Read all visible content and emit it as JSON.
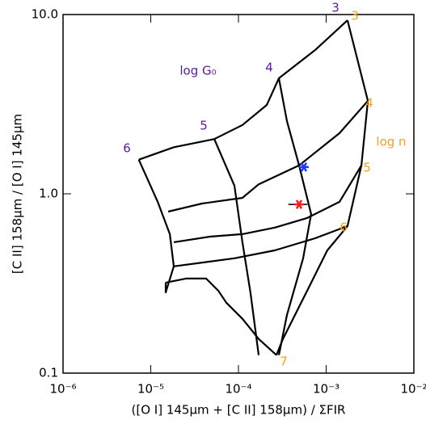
{
  "chart_data": {
    "type": "line",
    "xlabel": "([O I] 145μm + [C II] 158μm) / ΣFIR",
    "ylabel": "[C II] 158μm / [O I] 145μm",
    "log_x": true,
    "log_y": true,
    "xlim": [
      1e-06,
      0.01
    ],
    "ylim": [
      0.1,
      10
    ],
    "xticks": [
      {
        "value": 1e-06,
        "label": "10⁻⁶"
      },
      {
        "value": 1e-05,
        "label": "10⁻⁵"
      },
      {
        "value": 0.0001,
        "label": "10⁻⁴"
      },
      {
        "value": 0.001,
        "label": "10⁻³"
      },
      {
        "value": 0.01,
        "label": "10⁻²"
      }
    ],
    "yticks": [
      {
        "value": 0.1,
        "label": "0.1"
      },
      {
        "value": 1,
        "label": "1.0"
      },
      {
        "value": 10,
        "label": "10.0"
      }
    ],
    "series": [
      {
        "color": "#000000",
        "x": [
          7.3e-06,
          1.83e-05,
          5.3e-05,
          0.000111,
          0.00021,
          0.000289,
          0.00075,
          0.00175
        ],
        "values": [
          1.55,
          1.82,
          2.02,
          2.42,
          3.13,
          4.41,
          6.34,
          9.29
        ]
      },
      {
        "color": "#000000",
        "x": [
          1.58e-05,
          3.85e-05,
          0.000111,
          0.00017,
          0.000491,
          0.00142,
          0.00299
        ],
        "values": [
          0.796,
          0.883,
          0.949,
          1.13,
          1.44,
          2.18,
          3.3
        ]
      },
      {
        "color": "#000000",
        "x": [
          1.83e-05,
          4.75e-05,
          0.000111,
          0.00026,
          0.000607,
          0.00142,
          0.00252
        ],
        "values": [
          0.537,
          0.577,
          0.596,
          0.648,
          0.733,
          0.902,
          1.44
        ]
      },
      {
        "color": "#000000",
        "x": [
          1.83e-05,
          9e-05,
          0.00026,
          0.00075,
          0.00175
        ],
        "values": [
          0.394,
          0.437,
          0.484,
          0.565,
          0.661
        ]
      },
      {
        "color": "#000000",
        "x": [
          1.48e-05,
          2.52e-05,
          4.28e-05,
          5.89e-05,
          7.28e-05,
          0.000111,
          0.00017,
          0.000271
        ],
        "values": [
          0.32,
          0.337,
          0.337,
          0.288,
          0.247,
          0.201,
          0.155,
          0.126
        ]
      },
      {
        "color": "#000000",
        "x": [
          0.00175,
          0.00299,
          0.00252,
          0.00175,
          0.00103,
          0.000607,
          0.000321,
          0.000271
        ],
        "values": [
          9.29,
          3.3,
          1.44,
          0.661,
          0.484,
          0.288,
          0.155,
          0.126
        ]
      },
      {
        "color": "#000000",
        "x": [
          0.000289,
          0.000357,
          0.000491,
          0.000674,
          0.000546,
          0.000357,
          0.000289
        ],
        "values": [
          4.41,
          2.54,
          1.44,
          0.771,
          0.437,
          0.211,
          0.126
        ]
      },
      {
        "color": "#000000",
        "x": [
          5.3e-05,
          9e-05,
          0.000111,
          0.000137,
          0.00017
        ],
        "values": [
          2.02,
          1.11,
          0.537,
          0.282,
          0.126
        ]
      },
      {
        "color": "#000000",
        "x": [
          7.3e-06,
          1.2e-05,
          1.65e-05,
          1.83e-05,
          1.48e-05,
          1.48e-05
        ],
        "values": [
          1.55,
          0.902,
          0.596,
          0.394,
          0.282,
          0.32
        ]
      }
    ],
    "points": [
      {
        "color": "#1a3cff",
        "x": 0.000557,
        "values": 1.41
      },
      {
        "color": "#ff1a1a",
        "x": 0.000491,
        "values": 0.873,
        "xerr": 0.00012
      }
    ],
    "annotations": [
      {
        "text": "log G₀",
        "color": "#5b1a9b"
      },
      {
        "text": "3",
        "color": "#5b1a9b"
      },
      {
        "text": "4",
        "color": "#5b1a9b"
      },
      {
        "text": "5",
        "color": "#5b1a9b"
      },
      {
        "text": "6",
        "color": "#5b1a9b"
      },
      {
        "text": "log n",
        "color": "#f5a31a"
      },
      {
        "text": "3",
        "color": "#f5a31a"
      },
      {
        "text": "4",
        "color": "#f5a31a"
      },
      {
        "text": "5",
        "color": "#f5a31a"
      },
      {
        "text": "6",
        "color": "#f5a31a"
      },
      {
        "text": "7",
        "color": "#f5a31a"
      }
    ]
  }
}
